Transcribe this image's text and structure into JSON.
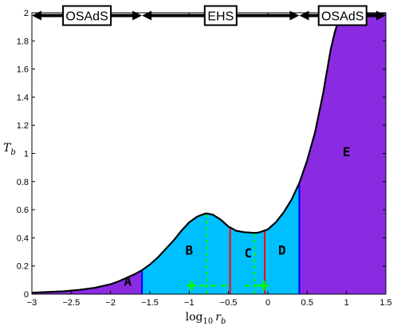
{
  "chart_data": {
    "type": "area",
    "xlabel_main": "log",
    "xlabel_sub": "10",
    "xlabel_var": "r",
    "xlabel_var_sub": "b",
    "ylabel_var": "T",
    "ylabel_sub": "b",
    "xlim": [
      -3,
      1.5
    ],
    "ylim": [
      0,
      2
    ],
    "xticks": [
      -3,
      -2.5,
      -2,
      -1.5,
      -1,
      -0.5,
      0,
      0.5,
      1,
      1.5
    ],
    "xtick_labels": [
      "−3",
      "−2.5",
      "−2",
      "−1.5",
      "−1",
      "−0.5",
      "0",
      "0.5",
      "1",
      "1.5"
    ],
    "yticks": [
      0,
      0.2,
      0.4,
      0.6,
      0.8,
      1,
      1.2,
      1.4,
      1.6,
      1.8,
      2
    ],
    "ytick_labels": [
      "0",
      "0.2",
      "0.4",
      "0.6",
      "0.8",
      "1",
      "1.2",
      "1.4",
      "1.6",
      "1.8",
      "2"
    ],
    "curve": {
      "x": [
        -3.0,
        -2.8,
        -2.6,
        -2.4,
        -2.2,
        -2.0,
        -1.9,
        -1.8,
        -1.7,
        -1.6,
        -1.5,
        -1.4,
        -1.3,
        -1.2,
        -1.1,
        -1.0,
        -0.9,
        -0.8,
        -0.77,
        -0.7,
        -0.6,
        -0.5,
        -0.4,
        -0.3,
        -0.2,
        -0.15,
        -0.1,
        0.0,
        0.1,
        0.2,
        0.3,
        0.4,
        0.5,
        0.6,
        0.7,
        0.75,
        0.8,
        0.85,
        0.9,
        0.95,
        1.0,
        1.5
      ],
      "y": [
        0.01,
        0.015,
        0.02,
        0.03,
        0.045,
        0.07,
        0.09,
        0.115,
        0.14,
        0.17,
        0.21,
        0.26,
        0.32,
        0.38,
        0.45,
        0.51,
        0.55,
        0.572,
        0.573,
        0.565,
        0.53,
        0.48,
        0.45,
        0.44,
        0.436,
        0.435,
        0.44,
        0.46,
        0.51,
        0.58,
        0.67,
        0.79,
        0.95,
        1.15,
        1.42,
        1.58,
        1.74,
        1.86,
        1.95,
        2.0,
        2.0,
        2.0
      ]
    },
    "regions": [
      {
        "label": "A",
        "x_from": -3.0,
        "x_to": -1.6,
        "color": "#8a2be2",
        "label_x": -1.78,
        "label_y": 0.06
      },
      {
        "label": "B",
        "x_from": -1.6,
        "x_to": -0.48,
        "color": "#00bfff",
        "label_x": -1.0,
        "label_y": 0.28
      },
      {
        "label": "C",
        "x_from": -0.48,
        "x_to": -0.04,
        "color": "#00bfff",
        "label_x": -0.25,
        "label_y": 0.26
      },
      {
        "label": "D",
        "x_from": -0.04,
        "x_to": 0.4,
        "color": "#00bfff",
        "label_x": 0.18,
        "label_y": 0.28
      },
      {
        "label": "E",
        "x_from": 0.4,
        "x_to": 1.5,
        "color": "#8a2be2",
        "label_x": 1.0,
        "label_y": 0.98
      }
    ],
    "boundaries": [
      {
        "x": -1.6,
        "color": "#0000ff"
      },
      {
        "x": -0.48,
        "color": "#ff0000"
      },
      {
        "x": -0.04,
        "color": "#ff0000"
      },
      {
        "x": 0.4,
        "color": "#0000ff"
      }
    ],
    "dashed_lines": [
      {
        "x": -0.77,
        "color": "#00ff00"
      },
      {
        "x": -0.17,
        "color": "#00ff00"
      }
    ],
    "dashed_horizontal": {
      "y": 0.06,
      "x_from": -1.0,
      "x_to": -0.5,
      "color": "#00ff00"
    },
    "dashed_horizontal_2": {
      "y": 0.06,
      "x_from": -0.3,
      "x_to": -0.03,
      "color": "#00ff00"
    },
    "plus_markers": [
      {
        "x": -0.97,
        "y": 0.06
      },
      {
        "x": -0.05,
        "y": 0.06
      }
    ],
    "top_bands": [
      {
        "label": "OSAdS",
        "x_from": -3.0,
        "x_to": -1.6
      },
      {
        "label": "EHS",
        "x_from": -1.6,
        "x_to": 0.4
      },
      {
        "label": "OSAdS",
        "x_from": 0.4,
        "x_to": 1.5
      }
    ]
  }
}
